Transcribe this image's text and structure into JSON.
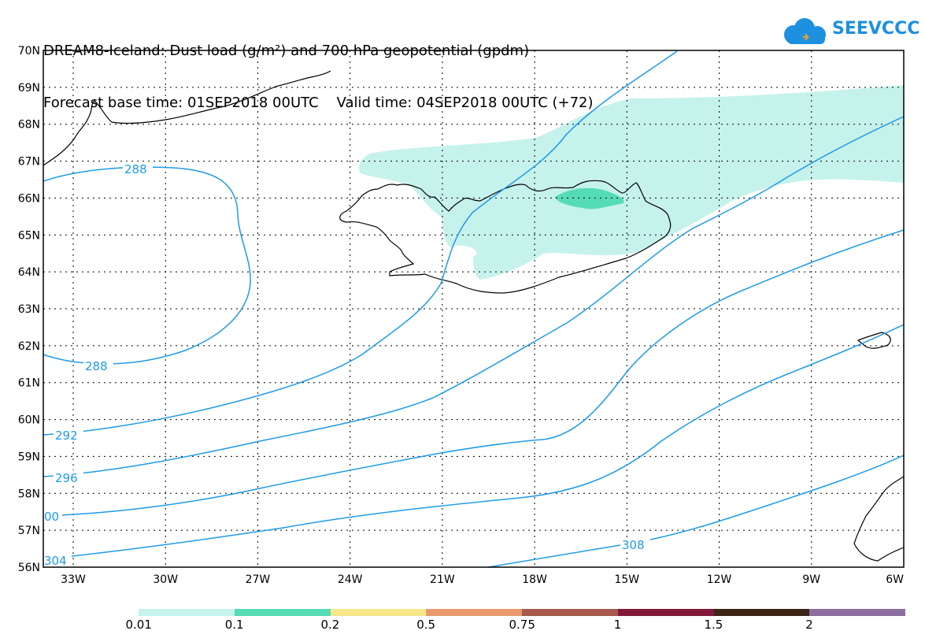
{
  "header": {
    "line1": "DREAM8-Iceland: Dust load (g/m²) and 700 hPa geopotential (gpdm)",
    "line2": "Forecast base time: 01SEP2018 00UTC    Valid time: 04SEP2018 00UTC (+72)"
  },
  "logo": {
    "text": "SEEVCCC",
    "icon": "cloud-icon",
    "color": "#1e90e0"
  },
  "map": {
    "lat_labels": [
      "70N",
      "69N",
      "68N",
      "67N",
      "66N",
      "65N",
      "64N",
      "63N",
      "62N",
      "61N",
      "60N",
      "59N",
      "58N",
      "57N",
      "56N"
    ],
    "lon_labels": [
      "33W",
      "30W",
      "27W",
      "24W",
      "21W",
      "18W",
      "15W",
      "12W",
      "9W",
      "6W"
    ],
    "contour_labels": [
      "288",
      "288",
      "292",
      "296",
      "00",
      "304",
      "308"
    ],
    "contour_color": "#1e9be8",
    "dust_light_color": "#c6f2ec",
    "dust_mid_color": "#55dcb4"
  },
  "colorbar": {
    "labels": [
      "0.01",
      "0.1",
      "0.2",
      "0.5",
      "0.75",
      "1",
      "1.5",
      "2"
    ],
    "colors": [
      "#c6f2ec",
      "#55dcb4",
      "#f6e88a",
      "#e89a6e",
      "#a85a4e",
      "#82183a",
      "#3c2416",
      "#8c6ea0"
    ]
  }
}
